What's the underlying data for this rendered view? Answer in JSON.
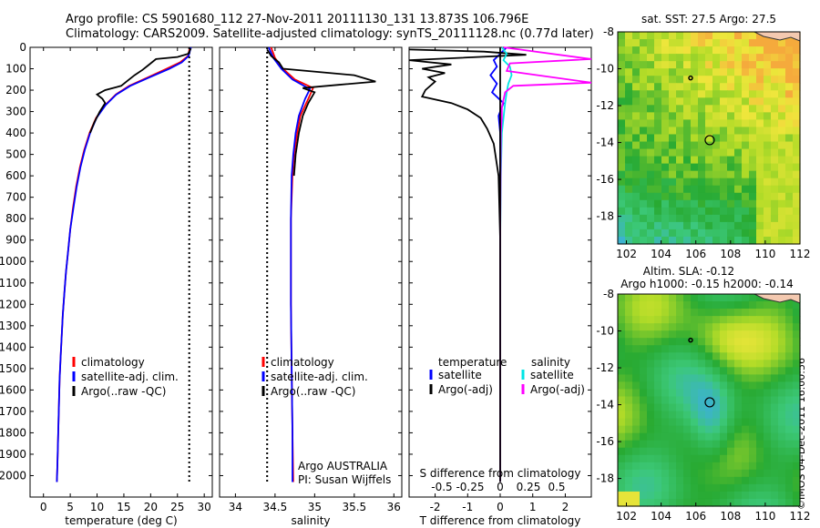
{
  "header": {
    "line1": "Argo profile: CS 5901680_112 27-Nov-2011 20111130_131 13.873S 106.796E",
    "line2": "Climatology: CARS2009. Satellite-adjusted climatology: synTS_20111128.nc (0.77d later)"
  },
  "footer_stamp": "©IMOS 04-Dec-2011 16:00:56",
  "colors": {
    "climatology": "#ff0000",
    "satellite": "#0000ff",
    "argo": "#000000",
    "salinity_sat": "#00e5e5",
    "salinity_argo": "#ff00ff"
  },
  "chart_data": [
    {
      "id": "temperature",
      "type": "line",
      "xlabel": "temperature (deg C)",
      "xticks": [
        0,
        5,
        10,
        15,
        20,
        25,
        30
      ],
      "xlim": [
        -2.5,
        31.5
      ],
      "ylim": [
        2100,
        0
      ],
      "yticks": [
        0,
        100,
        200,
        300,
        400,
        500,
        600,
        700,
        800,
        900,
        1000,
        1100,
        1200,
        1300,
        1400,
        1500,
        1600,
        1700,
        1800,
        1900,
        2000
      ],
      "legend": [
        "climatology",
        "satellite-adj. clim.",
        "Argo(..raw -QC)"
      ],
      "series": [
        {
          "name": "climatology",
          "color": "#ff0000",
          "points": [
            [
              27.3,
              0
            ],
            [
              27,
              40
            ],
            [
              25.5,
              70
            ],
            [
              23,
              100
            ],
            [
              19.5,
              140
            ],
            [
              16,
              180
            ],
            [
              13.5,
              220
            ],
            [
              11.5,
              270
            ],
            [
              9.8,
              330
            ],
            [
              8.6,
              400
            ],
            [
              7.6,
              480
            ],
            [
              6.8,
              560
            ],
            [
              6.1,
              650
            ],
            [
              5.5,
              750
            ],
            [
              5,
              850
            ],
            [
              4.6,
              950
            ],
            [
              4.2,
              1050
            ],
            [
              3.9,
              1150
            ],
            [
              3.6,
              1250
            ],
            [
              3.4,
              1350
            ],
            [
              3.2,
              1450
            ],
            [
              3,
              1550
            ],
            [
              2.9,
              1650
            ],
            [
              2.8,
              1750
            ],
            [
              2.7,
              1850
            ],
            [
              2.6,
              1950
            ],
            [
              2.5,
              2030
            ]
          ]
        },
        {
          "name": "satellite-adj. clim.",
          "color": "#0000ff",
          "points": [
            [
              27.5,
              0
            ],
            [
              27.1,
              40
            ],
            [
              25.8,
              70
            ],
            [
              23.5,
              100
            ],
            [
              19.8,
              140
            ],
            [
              16.2,
              180
            ],
            [
              13.6,
              220
            ],
            [
              11.6,
              270
            ],
            [
              9.9,
              330
            ],
            [
              8.7,
              400
            ],
            [
              7.7,
              480
            ],
            [
              6.9,
              560
            ],
            [
              6.2,
              650
            ],
            [
              5.6,
              750
            ],
            [
              5,
              850
            ],
            [
              4.6,
              950
            ],
            [
              4.2,
              1050
            ],
            [
              3.9,
              1150
            ],
            [
              3.6,
              1250
            ],
            [
              3.4,
              1350
            ],
            [
              3.2,
              1450
            ],
            [
              3,
              1550
            ],
            [
              2.9,
              1650
            ],
            [
              2.8,
              1750
            ],
            [
              2.7,
              1850
            ],
            [
              2.6,
              1950
            ],
            [
              2.5,
              2030
            ]
          ]
        },
        {
          "name": "Argo",
          "color": "#000000",
          "points": [
            [
              27.5,
              5
            ],
            [
              27,
              30
            ],
            [
              25,
              45
            ],
            [
              21,
              55
            ],
            [
              19.5,
              85
            ],
            [
              18.5,
              105
            ],
            [
              17,
              130
            ],
            [
              15.5,
              160
            ],
            [
              14.5,
              180
            ],
            [
              11.5,
              200
            ],
            [
              10,
              220
            ],
            [
              11,
              240
            ],
            [
              11.5,
              260
            ],
            [
              10.5,
              300
            ],
            [
              9.5,
              350
            ],
            [
              8.7,
              400
            ]
          ]
        },
        {
          "name": "",
          "color": "#000000",
          "dashed": true,
          "points": [
            [
              27.2,
              0
            ],
            [
              27.2,
              2030
            ]
          ]
        }
      ]
    },
    {
      "id": "salinity",
      "type": "line",
      "xlabel": "salinity",
      "xticks": [
        34,
        34.5,
        35,
        35.5,
        36
      ],
      "xlim": [
        33.8,
        36.1
      ],
      "ylim": [
        2100,
        0
      ],
      "legend": [
        "climatology",
        "satellite-adj. clim.",
        "Argo(..raw -QC)"
      ],
      "annotation": [
        "Argo AUSTRALIA",
        "PI: Susan Wijffels"
      ],
      "series": [
        {
          "name": "climatology",
          "color": "#ff0000",
          "points": [
            [
              34.45,
              0
            ],
            [
              34.5,
              50
            ],
            [
              34.6,
              100
            ],
            [
              34.75,
              150
            ],
            [
              34.98,
              190
            ],
            [
              34.92,
              240
            ],
            [
              34.82,
              320
            ],
            [
              34.78,
              400
            ],
            [
              34.74,
              500
            ],
            [
              34.72,
              600
            ],
            [
              34.7,
              800
            ],
            [
              34.7,
              1000
            ],
            [
              34.7,
              1200
            ],
            [
              34.71,
              1500
            ],
            [
              34.72,
              1800
            ],
            [
              34.73,
              2030
            ]
          ]
        },
        {
          "name": "satellite-adj. clim.",
          "color": "#0000ff",
          "points": [
            [
              34.42,
              0
            ],
            [
              34.48,
              50
            ],
            [
              34.58,
              100
            ],
            [
              34.72,
              150
            ],
            [
              34.94,
              195
            ],
            [
              34.88,
              240
            ],
            [
              34.8,
              320
            ],
            [
              34.76,
              400
            ],
            [
              34.73,
              500
            ],
            [
              34.71,
              600
            ],
            [
              34.7,
              800
            ],
            [
              34.7,
              1000
            ],
            [
              34.7,
              1200
            ],
            [
              34.71,
              1500
            ],
            [
              34.72,
              1800
            ],
            [
              34.72,
              2030
            ]
          ]
        },
        {
          "name": "Argo",
          "color": "#000000",
          "points": [
            [
              34.4,
              10
            ],
            [
              34.45,
              40
            ],
            [
              34.55,
              70
            ],
            [
              34.6,
              100
            ],
            [
              35.5,
              130
            ],
            [
              35.77,
              160
            ],
            [
              35.3,
              175
            ],
            [
              34.85,
              190
            ],
            [
              35,
              210
            ],
            [
              34.92,
              260
            ],
            [
              34.85,
              320
            ],
            [
              34.8,
              400
            ],
            [
              34.76,
              500
            ],
            [
              34.74,
              600
            ]
          ]
        },
        {
          "name": "",
          "color": "#000000",
          "dashed": true,
          "points": [
            [
              34.4,
              0
            ],
            [
              34.4,
              2030
            ]
          ]
        }
      ]
    },
    {
      "id": "difference",
      "type": "line",
      "xlabel": "T difference from climatology",
      "xlabel_top": "S difference from climatology",
      "xticks": [
        -2,
        -1,
        0,
        1,
        2
      ],
      "xticks_top": [
        "-0.5",
        "-0.25",
        "0",
        "0.25",
        "0.5"
      ],
      "xlim": [
        -2.8,
        2.8
      ],
      "ylim": [
        2100,
        0
      ],
      "legend_headers": [
        "temperature",
        "salinity"
      ],
      "legend": [
        "satellite",
        "Argo(-adj)",
        "satellite",
        "Argo(-adj)"
      ],
      "series": [
        {
          "name": "T satellite",
          "color": "#0000ff",
          "points": [
            [
              0.2,
              0
            ],
            [
              0,
              30
            ],
            [
              -0.2,
              60
            ],
            [
              -0.1,
              90
            ],
            [
              -0.3,
              130
            ],
            [
              -0.1,
              170
            ],
            [
              -0.25,
              210
            ],
            [
              0.1,
              260
            ],
            [
              -0.05,
              320
            ],
            [
              0,
              400
            ],
            [
              0,
              600
            ],
            [
              0,
              900
            ],
            [
              0,
              1300
            ],
            [
              0,
              1700
            ],
            [
              0,
              2030
            ]
          ]
        },
        {
          "name": "T Argo(-adj)",
          "color": "#000000",
          "points": [
            [
              -2.8,
              10
            ],
            [
              -0.5,
              20
            ],
            [
              0.8,
              35
            ],
            [
              -2.8,
              60
            ],
            [
              -1.5,
              80
            ],
            [
              -2.4,
              100
            ],
            [
              -1.7,
              120
            ],
            [
              -2.2,
              140
            ],
            [
              -2,
              160
            ],
            [
              -2.3,
              200
            ],
            [
              -2.4,
              230
            ],
            [
              -1.5,
              260
            ],
            [
              -1,
              290
            ],
            [
              -0.6,
              330
            ],
            [
              -0.4,
              380
            ],
            [
              -0.2,
              450
            ],
            [
              -0.05,
              600
            ],
            [
              0,
              900
            ],
            [
              0,
              1300
            ],
            [
              0,
              1700
            ],
            [
              0,
              2030
            ]
          ]
        },
        {
          "name": "S satellite",
          "color": "#00e5e5",
          "points": [
            [
              0.05,
              0
            ],
            [
              0.2,
              30
            ],
            [
              0.1,
              60
            ],
            [
              0.3,
              90
            ],
            [
              0.35,
              130
            ],
            [
              0.25,
              170
            ],
            [
              0.2,
              210
            ],
            [
              0.15,
              260
            ],
            [
              0.1,
              330
            ],
            [
              0.05,
              400
            ],
            [
              0.02,
              600
            ],
            [
              0,
              900
            ],
            [
              0,
              1300
            ],
            [
              0,
              1700
            ],
            [
              0,
              2030
            ]
          ]
        },
        {
          "name": "S Argo(-adj)",
          "color": "#ff00ff",
          "points": [
            [
              0.1,
              0
            ],
            [
              2.8,
              55
            ],
            [
              0.3,
              75
            ],
            [
              0.2,
              110
            ],
            [
              2.8,
              165
            ],
            [
              0.4,
              180
            ],
            [
              0.15,
              210
            ],
            [
              0.05,
              280
            ],
            [
              0.05,
              330
            ],
            [
              0.02,
              400
            ],
            [
              0.01,
              600
            ],
            [
              0,
              900
            ],
            [
              0,
              2030
            ]
          ]
        },
        {
          "name": "",
          "color": "#000000",
          "points": [
            [
              0,
              0
            ],
            [
              0,
              2030
            ]
          ]
        }
      ]
    }
  ],
  "maps": [
    {
      "id": "sst",
      "title": [
        "sat. SST: 27.5 Argo: 27.5"
      ],
      "yticks": [
        -8,
        -10,
        -12,
        -14,
        -16,
        -18
      ],
      "xticks": [
        102,
        104,
        106,
        108,
        110,
        112
      ],
      "ylim": [
        -8,
        -19.5
      ],
      "xlim": [
        101.5,
        112
      ],
      "marker": {
        "lon": 106.8,
        "lat": -13.87
      },
      "track": {
        "lon": 105.7,
        "lat": -10.5
      }
    },
    {
      "id": "sla",
      "title": [
        "Altim. SLA: -0.12",
        "Argo h1000: -0.15 h2000: -0.14"
      ],
      "yticks": [
        -8,
        -10,
        -12,
        -14,
        -16,
        -18
      ],
      "xticks": [
        102,
        104,
        106,
        108,
        110,
        112
      ],
      "ylim": [
        -8,
        -19.5
      ],
      "xlim": [
        101.5,
        112
      ],
      "marker": {
        "lon": 106.8,
        "lat": -13.87
      },
      "track": {
        "lon": 105.7,
        "lat": -10.5
      }
    }
  ]
}
